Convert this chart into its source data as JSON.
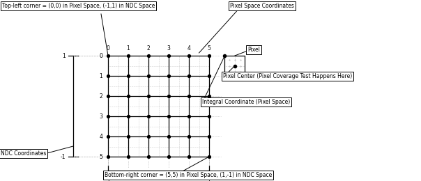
{
  "fig_width": 6.04,
  "fig_height": 2.6,
  "dpi": 100,
  "bg_color": "#ffffff",
  "n": 5,
  "annotations": {
    "top_left": "Top-left corner = (0,0) in Pixel Space, (-1,1) in NDC Space",
    "bottom_right": "Bottom-right corner = (5,5) in Pixel Space, (1,-1) in NDC Space",
    "pixel_space": "Pixel Space Coordinates",
    "pixel": "Pixel",
    "pixel_center": "Pixel Center (Pixel Coverage Test Happens Here)",
    "integral": "Integral Coordinate (Pixel Space)",
    "ndc": "NDC Coordinates"
  },
  "fs": 6.0
}
